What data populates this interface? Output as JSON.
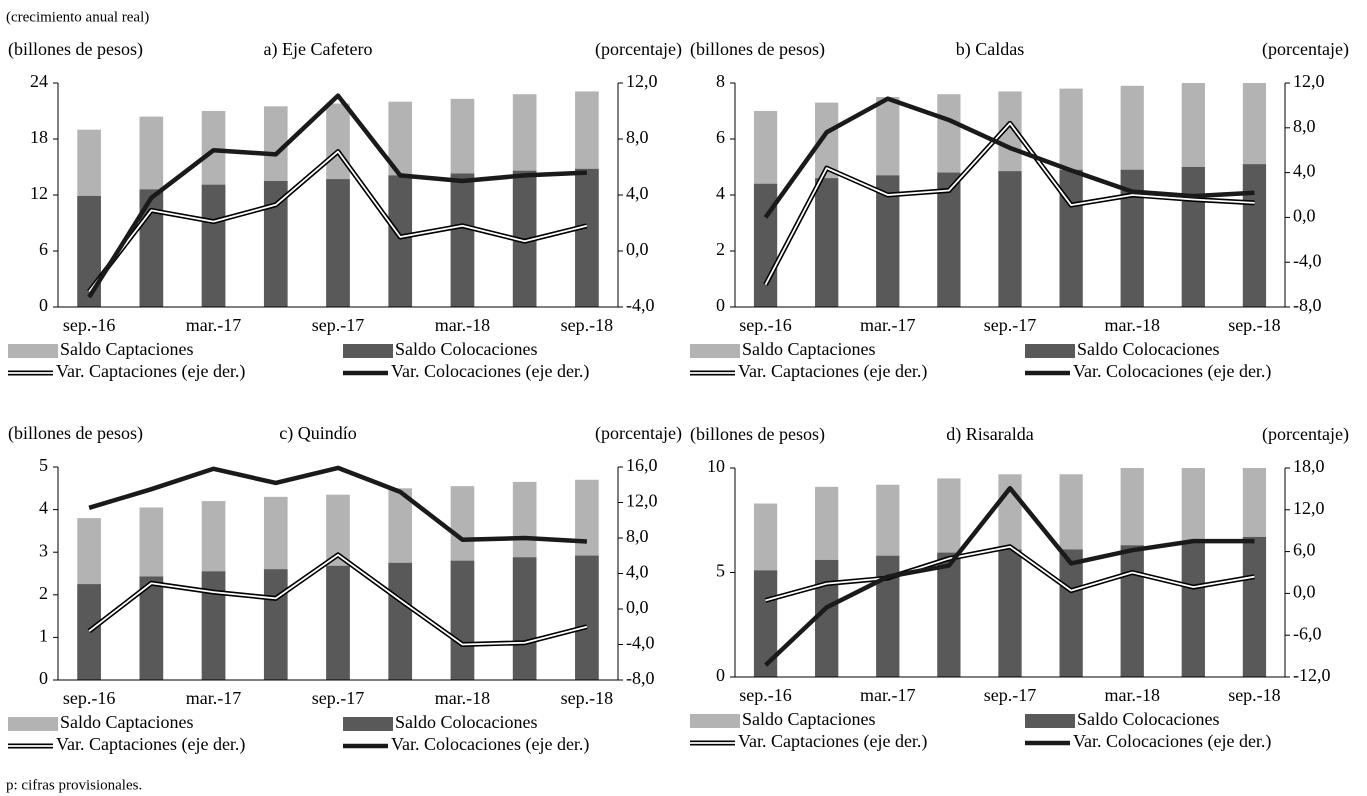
{
  "header": {
    "subtitle": "(crecimiento anual real)"
  },
  "footnote": "p: cifras provisionales.",
  "chart_data": [
    {
      "type": "bar_line",
      "title": "a) Eje Cafetero",
      "y_label": "(billones de pesos)",
      "y2_label": "(porcentaje)",
      "categories": [
        "sep.-16",
        null,
        "mar.-17",
        null,
        "sep.-17",
        null,
        "mar.-18",
        null,
        "sep.-18"
      ],
      "ylim": [
        0,
        24
      ],
      "yticks": [
        0,
        6,
        12,
        18,
        24
      ],
      "y2lim": [
        -4,
        12
      ],
      "y2ticks": [
        {
          "value": -4,
          "label": "-4,0"
        },
        {
          "value": 0,
          "label": "0,0"
        },
        {
          "value": 4,
          "label": "4,0"
        },
        {
          "value": 8,
          "label": "8,0"
        },
        {
          "value": 12,
          "label": "12,0"
        }
      ],
      "series": [
        {
          "name": "Saldo Captaciones",
          "kind": "bar",
          "color": "#b3b3b3",
          "values": [
            19,
            20.4,
            21,
            21.5,
            21.8,
            22,
            22.3,
            22.8,
            23.1
          ]
        },
        {
          "name": "Saldo Colocaciones",
          "kind": "bar",
          "color": "#595959",
          "values": [
            11.9,
            12.6,
            13.1,
            13.5,
            13.7,
            14.1,
            14.3,
            14.6,
            14.8
          ]
        },
        {
          "name": "Var. Captaciones (eje der.)",
          "kind": "line",
          "line_style": "double",
          "axis": "y2",
          "color": "#000000",
          "values": [
            -2.9,
            2.9,
            2.1,
            3.3,
            7.1,
            1.0,
            1.8,
            0.7,
            1.8
          ]
        },
        {
          "name": "Var. Colocaciones (eje der.)",
          "kind": "line",
          "line_style": "solid",
          "axis": "y2",
          "color": "#1a1a1a",
          "values": [
            -3.3,
            3.8,
            7.2,
            6.9,
            11.1,
            5.4,
            5.0,
            5.4,
            5.6
          ]
        }
      ]
    },
    {
      "type": "bar_line",
      "title": "b) Caldas",
      "y_label": "(billones de pesos)",
      "y2_label": "(porcentaje)",
      "categories": [
        "sep.-16",
        null,
        "mar.-17",
        null,
        "sep.-17",
        null,
        "mar.-18",
        null,
        "sep.-18"
      ],
      "ylim": [
        0,
        8
      ],
      "yticks": [
        0,
        2,
        4,
        6,
        8
      ],
      "y2lim": [
        -8,
        12
      ],
      "y2ticks": [
        {
          "value": -8,
          "label": "-8,0"
        },
        {
          "value": -4,
          "label": "-4,0"
        },
        {
          "value": 0,
          "label": "0,0"
        },
        {
          "value": 4,
          "label": "4,0"
        },
        {
          "value": 8,
          "label": "8,0"
        },
        {
          "value": 12,
          "label": "12,0"
        }
      ],
      "series": [
        {
          "name": "Saldo Captaciones",
          "kind": "bar",
          "color": "#b3b3b3",
          "values": [
            7.0,
            7.3,
            7.5,
            7.6,
            7.7,
            7.8,
            7.9,
            8.0,
            8.0
          ]
        },
        {
          "name": "Saldo Colocaciones",
          "kind": "bar",
          "color": "#595959",
          "values": [
            4.4,
            4.6,
            4.7,
            4.8,
            4.85,
            4.9,
            4.9,
            5.0,
            5.1
          ]
        },
        {
          "name": "Var. Captaciones (eje der.)",
          "kind": "line",
          "line_style": "double",
          "axis": "y2",
          "color": "#000000",
          "values": [
            -6.0,
            4.4,
            2.0,
            2.4,
            8.4,
            1.1,
            2.0,
            1.6,
            1.3
          ]
        },
        {
          "name": "Var. Colocaciones (eje der.)",
          "kind": "line",
          "line_style": "solid",
          "axis": "y2",
          "color": "#1a1a1a",
          "values": [
            0.0,
            7.6,
            10.6,
            8.7,
            6.2,
            4.2,
            2.3,
            1.9,
            2.2
          ]
        }
      ]
    },
    {
      "type": "bar_line",
      "title": "c) Quindío",
      "y_label": "(billones de pesos)",
      "y2_label": "(porcentaje)",
      "categories": [
        "sep.-16",
        null,
        "mar.-17",
        null,
        "sep.-17",
        null,
        "mar.-18",
        null,
        "sep.-18"
      ],
      "ylim": [
        0,
        5
      ],
      "yticks": [
        0,
        1,
        2,
        3,
        4,
        5
      ],
      "y2lim": [
        -8,
        16
      ],
      "y2ticks": [
        {
          "value": -8,
          "label": "-8,0"
        },
        {
          "value": -4,
          "label": "-4,0"
        },
        {
          "value": 0,
          "label": "0,0"
        },
        {
          "value": 4,
          "label": "4,0"
        },
        {
          "value": 8,
          "label": "8,0"
        },
        {
          "value": 12,
          "label": "12,0"
        },
        {
          "value": 16,
          "label": "16,0"
        }
      ],
      "series": [
        {
          "name": "Saldo Captaciones",
          "kind": "bar",
          "color": "#b3b3b3",
          "values": [
            3.8,
            4.05,
            4.2,
            4.3,
            4.35,
            4.5,
            4.55,
            4.65,
            4.7
          ]
        },
        {
          "name": "Saldo Colocaciones",
          "kind": "bar",
          "color": "#595959",
          "values": [
            2.25,
            2.43,
            2.55,
            2.6,
            2.68,
            2.75,
            2.8,
            2.88,
            2.92
          ]
        },
        {
          "name": "Var. Captaciones (eje der.)",
          "kind": "line",
          "line_style": "double",
          "axis": "y2",
          "color": "#000000",
          "values": [
            -2.5,
            2.9,
            1.9,
            1.2,
            6.1,
            1.0,
            -4.0,
            -3.8,
            -2.0
          ]
        },
        {
          "name": "Var. Colocaciones (eje der.)",
          "kind": "line",
          "line_style": "solid",
          "axis": "y2",
          "color": "#1a1a1a",
          "values": [
            11.4,
            13.5,
            15.8,
            14.2,
            15.9,
            13.2,
            7.8,
            8.0,
            7.6
          ]
        }
      ]
    },
    {
      "type": "bar_line",
      "title": "d) Risaralda",
      "y_label": "(billones de pesos)",
      "y2_label": "(porcentaje)",
      "categories": [
        "sep.-16",
        null,
        "mar.-17",
        null,
        "sep.-17",
        null,
        "mar.-18",
        null,
        "sep.-18"
      ],
      "ylim": [
        0,
        10
      ],
      "yticks": [
        0,
        5,
        10
      ],
      "y2lim": [
        -12,
        18
      ],
      "y2ticks": [
        {
          "value": -12,
          "label": "-12,0"
        },
        {
          "value": -6,
          "label": "-6,0"
        },
        {
          "value": 0,
          "label": "0,0"
        },
        {
          "value": 6,
          "label": "6,0"
        },
        {
          "value": 12,
          "label": "12,0"
        },
        {
          "value": 18,
          "label": "18,0"
        }
      ],
      "series": [
        {
          "name": "Saldo Captaciones",
          "kind": "bar",
          "color": "#b3b3b3",
          "values": [
            8.3,
            9.1,
            9.2,
            9.5,
            9.7,
            9.7,
            10.0,
            10.0,
            10.0
          ]
        },
        {
          "name": "Saldo Colocaciones",
          "kind": "bar",
          "color": "#595959",
          "values": [
            5.1,
            5.6,
            5.8,
            5.95,
            6.1,
            6.1,
            6.3,
            6.4,
            6.7
          ]
        },
        {
          "name": "Var. Captaciones (eje der.)",
          "kind": "line",
          "line_style": "double",
          "axis": "y2",
          "color": "#000000",
          "values": [
            -1.0,
            1.4,
            2.2,
            5.0,
            6.7,
            0.4,
            3.0,
            0.9,
            2.4
          ]
        },
        {
          "name": "Var. Colocaciones (eje der.)",
          "kind": "line",
          "line_style": "solid",
          "axis": "y2",
          "color": "#1a1a1a",
          "values": [
            -10.3,
            -2.0,
            2.4,
            4.0,
            15.1,
            4.3,
            6.2,
            7.5,
            7.5
          ]
        }
      ]
    }
  ]
}
